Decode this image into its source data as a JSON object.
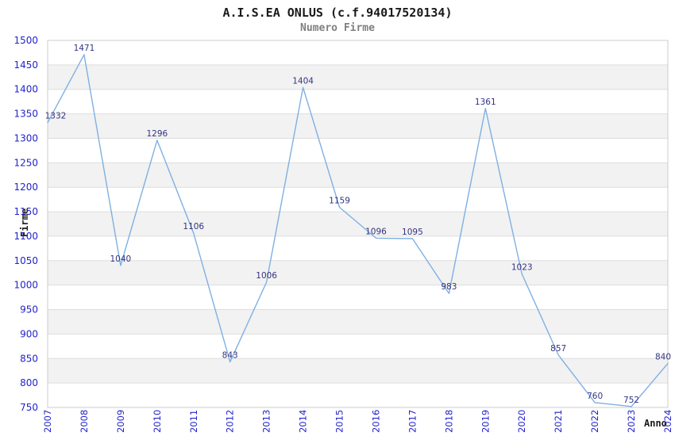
{
  "chart_data": {
    "type": "line",
    "title": "A.I.S.EA ONLUS (c.f.94017520134)",
    "subtitle": "Numero Firme",
    "xlabel": "Anno",
    "ylabel": "Firme",
    "categories": [
      "2007",
      "2008",
      "2009",
      "2010",
      "2011",
      "2012",
      "2013",
      "2014",
      "2015",
      "2016",
      "2017",
      "2018",
      "2019",
      "2020",
      "2021",
      "2022",
      "2023",
      "2024"
    ],
    "values": [
      1332,
      1471,
      1040,
      1296,
      1106,
      843,
      1006,
      1404,
      1159,
      1096,
      1095,
      983,
      1361,
      1023,
      857,
      760,
      752,
      840
    ],
    "ylim": [
      750,
      1500
    ],
    "y_tick_step": 50,
    "y_ticks": [
      750,
      800,
      850,
      900,
      950,
      1000,
      1050,
      1100,
      1150,
      1200,
      1250,
      1300,
      1350,
      1400,
      1450,
      1500
    ],
    "grid": true,
    "legend_position": "none",
    "data_labels_visible": true,
    "colors": {
      "line": "#7fb0e2",
      "data_label": "#333380",
      "tick_label": "#2222cc",
      "band_fill": "#f2f2f2",
      "gridline": "#dddddd",
      "plot_border": "#cccccc",
      "title_text": "#1a1a1a",
      "subtitle_text": "#808080",
      "background": "#ffffff"
    }
  }
}
